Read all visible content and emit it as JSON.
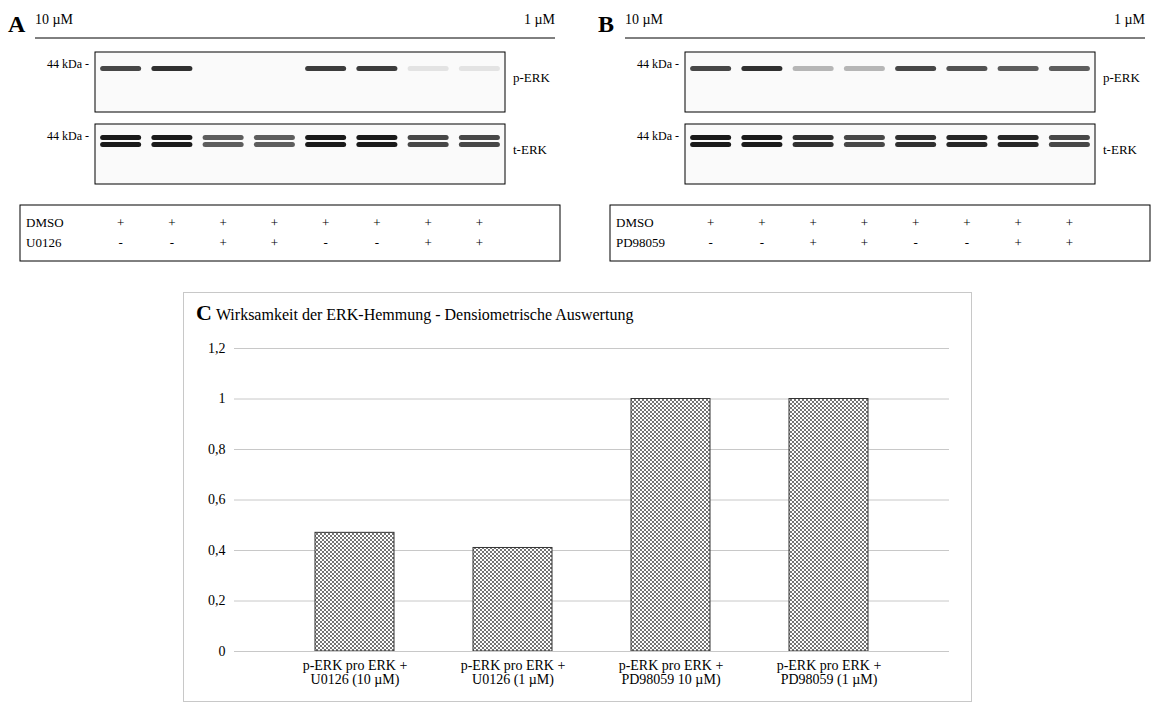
{
  "blots": [
    {
      "panel": "A",
      "groups": [
        {
          "label": "10 µM",
          "lanes": 4
        },
        {
          "label": "1 µM",
          "lanes": 4
        }
      ],
      "rows": [
        {
          "name": "p-ERK",
          "size_label": "44 kDa -",
          "doublet": false,
          "band_intensity": [
            0.8,
            0.9,
            0,
            0,
            0.85,
            0.85,
            0.1,
            0.1
          ]
        },
        {
          "name": "t-ERK",
          "size_label": "44 kDa -",
          "doublet": true,
          "band_intensity": [
            1,
            1,
            0.7,
            0.7,
            1,
            1,
            0.8,
            0.8
          ]
        }
      ],
      "treatments": [
        {
          "name": "DMSO",
          "signs": [
            "+",
            "+",
            "+",
            "+",
            "+",
            "+",
            "+",
            "+"
          ]
        },
        {
          "name": "U0126",
          "signs": [
            "-",
            "-",
            "+",
            "+",
            "-",
            "-",
            "+",
            "+"
          ]
        }
      ]
    },
    {
      "panel": "B",
      "groups": [
        {
          "label": "10 µM",
          "lanes": 4
        },
        {
          "label": "1 µM",
          "lanes": 4
        }
      ],
      "rows": [
        {
          "name": "p-ERK",
          "size_label": "44 kDa -",
          "doublet": false,
          "band_intensity": [
            0.8,
            0.9,
            0.3,
            0.3,
            0.8,
            0.75,
            0.7,
            0.7
          ]
        },
        {
          "name": "t-ERK",
          "size_label": "44 kDa -",
          "doublet": true,
          "band_intensity": [
            1,
            1,
            0.9,
            0.8,
            0.9,
            0.95,
            0.95,
            0.8
          ]
        }
      ],
      "treatments": [
        {
          "name": "DMSO",
          "signs": [
            "+",
            "+",
            "+",
            "+",
            "+",
            "+",
            "+",
            "+"
          ]
        },
        {
          "name": "PD98059",
          "signs": [
            "-",
            "-",
            "+",
            "+",
            "-",
            "-",
            "+",
            "+"
          ]
        }
      ]
    }
  ],
  "chart_data": {
    "type": "bar",
    "panel": "C",
    "title": "Wirksamkeit der ERK-Hemmung - Densiometrische Auswertung",
    "categories": [
      "p-ERK pro ERK + U0126 (10 µM)",
      "p-ERK pro ERK + U0126 (1 µM)",
      "p-ERK pro ERK + PD98059 10 µM)",
      "p-ERK pro ERK + PD98059 (1 µM)"
    ],
    "values": [
      0.47,
      0.41,
      1.0,
      1.0
    ],
    "color": "#333333",
    "ylim": [
      0,
      1.2
    ],
    "yticks": [
      0,
      {
        "value": 0.2,
        "label": "0,2"
      },
      {
        "value": 0.4,
        "label": "0,4"
      },
      {
        "value": 0.6,
        "label": "0,6"
      },
      {
        "value": 0.8,
        "label": "0,8"
      },
      1,
      {
        "value": 1.2,
        "label": "1,2"
      }
    ],
    "grid": true
  }
}
